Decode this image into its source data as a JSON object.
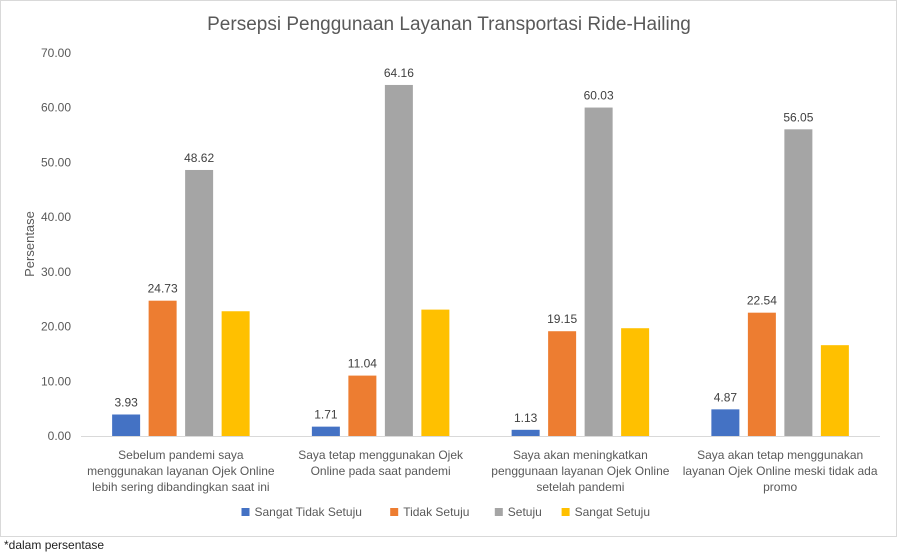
{
  "chart_data": {
    "type": "bar",
    "title": "Persepsi Penggunaan Layanan Transportasi Ride-Hailing",
    "xlabel": "",
    "ylabel": "Persentase",
    "ylim": [
      0,
      70
    ],
    "yticks": [
      "0.00",
      "10.00",
      "20.00",
      "30.00",
      "40.00",
      "50.00",
      "60.00",
      "70.00"
    ],
    "grid": false,
    "legend_position": "bottom",
    "categories": [
      [
        "Sebelum pandemi saya",
        "menggunakan layanan Ojek Online",
        "lebih sering dibandingkan saat ini"
      ],
      [
        "Saya tetap menggunakan Ojek",
        "Online pada saat pandemi"
      ],
      [
        "Saya akan meningkatkan",
        "penggunaan layanan Ojek Online",
        "setelah pandemi"
      ],
      [
        "Saya akan tetap menggunakan",
        "layanan Ojek Online meski tidak ada",
        "promo"
      ]
    ],
    "series": [
      {
        "name": "Sangat Tidak Setuju",
        "color": "#4472c4",
        "values": [
          3.93,
          1.71,
          1.13,
          4.87
        ],
        "labels": [
          "3.93",
          "1.71",
          "1.13",
          "4.87"
        ]
      },
      {
        "name": "Tidak Setuju",
        "color": "#ed7d31",
        "values": [
          24.73,
          11.04,
          19.15,
          22.54
        ],
        "labels": [
          "24.73",
          "11.04",
          "19.15",
          "22.54"
        ]
      },
      {
        "name": "Setuju",
        "color": "#a5a5a5",
        "values": [
          48.62,
          64.16,
          60.03,
          56.05
        ],
        "labels": [
          "48.62",
          "64.16",
          "60.03",
          "56.05"
        ]
      },
      {
        "name": "Sangat Setuju",
        "color": "#ffc000",
        "values": [
          22.8,
          23.1,
          19.7,
          16.6
        ],
        "labels": [
          "",
          "",
          "",
          ""
        ]
      }
    ]
  },
  "footnote": "*dalam persentase"
}
